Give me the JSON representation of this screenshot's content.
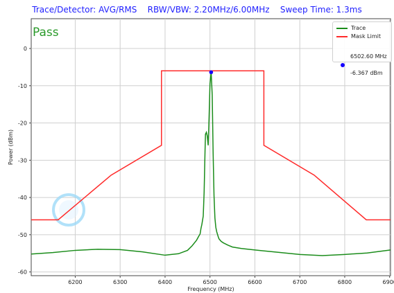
{
  "header": {
    "title": "Trace/Detector: AVG/RMS    RBW/VBW: 2.20MHz/6.00MHz    Sweep Time: 1.3ms"
  },
  "status": {
    "text": "Pass",
    "color": "#2a9a2a"
  },
  "legend": {
    "trace_label": "Trace",
    "mask_label": "Mask Limit",
    "marker_freq": "6502.60 MHz",
    "marker_power": "-6.367 dBm"
  },
  "colors": {
    "trace": "#1a8c1a",
    "mask": "#ff2a2a",
    "marker": "#1500ff",
    "title": "#1f1fff",
    "grid": "#cfcfcf"
  },
  "chart_data": {
    "type": "line",
    "title": "",
    "xlabel": "Frequency (MHz)",
    "ylabel": "Power (dBm)",
    "xlim": [
      6102,
      6902
    ],
    "ylim": [
      -61,
      8
    ],
    "x_ticks": [
      6200,
      6300,
      6400,
      6500,
      6600,
      6700,
      6800,
      6900
    ],
    "y_ticks": [
      0,
      -10,
      -20,
      -30,
      -40,
      -50,
      -60
    ],
    "tick_labels_x": [
      "6200",
      "6300",
      "6400",
      "6500",
      "6600",
      "6700",
      "6800",
      "6900"
    ],
    "tick_labels_y": [
      "0",
      "-10",
      "-20",
      "-30",
      "-40",
      "-50",
      "-60"
    ],
    "grid": true,
    "legend_position": "top-right",
    "series": [
      {
        "name": "Trace",
        "x": [
          6102,
          6150,
          6200,
          6250,
          6300,
          6350,
          6400,
          6430,
          6450,
          6460,
          6470,
          6475,
          6478,
          6480,
          6482,
          6485,
          6487,
          6489,
          6490,
          6492,
          6494,
          6496,
          6498,
          6500,
          6502.6,
          6505,
          6507,
          6509,
          6511,
          6513,
          6515,
          6518,
          6520,
          6525,
          6530,
          6540,
          6550,
          6570,
          6600,
          6650,
          6700,
          6750,
          6800,
          6850,
          6902
        ],
        "values": [
          -55.2,
          -54.8,
          -54.2,
          -53.9,
          -54.0,
          -54.6,
          -55.5,
          -55.1,
          -54.2,
          -53.0,
          -51.5,
          -50.4,
          -49.8,
          -48.3,
          -47.2,
          -45.0,
          -38.5,
          -27.5,
          -23.0,
          -22.5,
          -23.5,
          -26.0,
          -18.5,
          -9.5,
          -6.367,
          -12.5,
          -28.0,
          -39.5,
          -45.5,
          -48.0,
          -49.2,
          -50.4,
          -51.1,
          -51.8,
          -52.2,
          -52.8,
          -53.3,
          -53.7,
          -54.1,
          -54.7,
          -55.3,
          -55.6,
          -55.3,
          -54.9,
          -54.1
        ]
      },
      {
        "name": "Mask Limit",
        "x": [
          6102,
          6162,
          6280,
          6392,
          6392,
          6620,
          6620,
          6732,
          6848,
          6902
        ],
        "values": [
          -46,
          -46,
          -34,
          -26,
          -6,
          -6,
          -26,
          -34,
          -46,
          -46
        ]
      }
    ],
    "marker": {
      "x": 6502.6,
      "y": -6.367
    }
  }
}
